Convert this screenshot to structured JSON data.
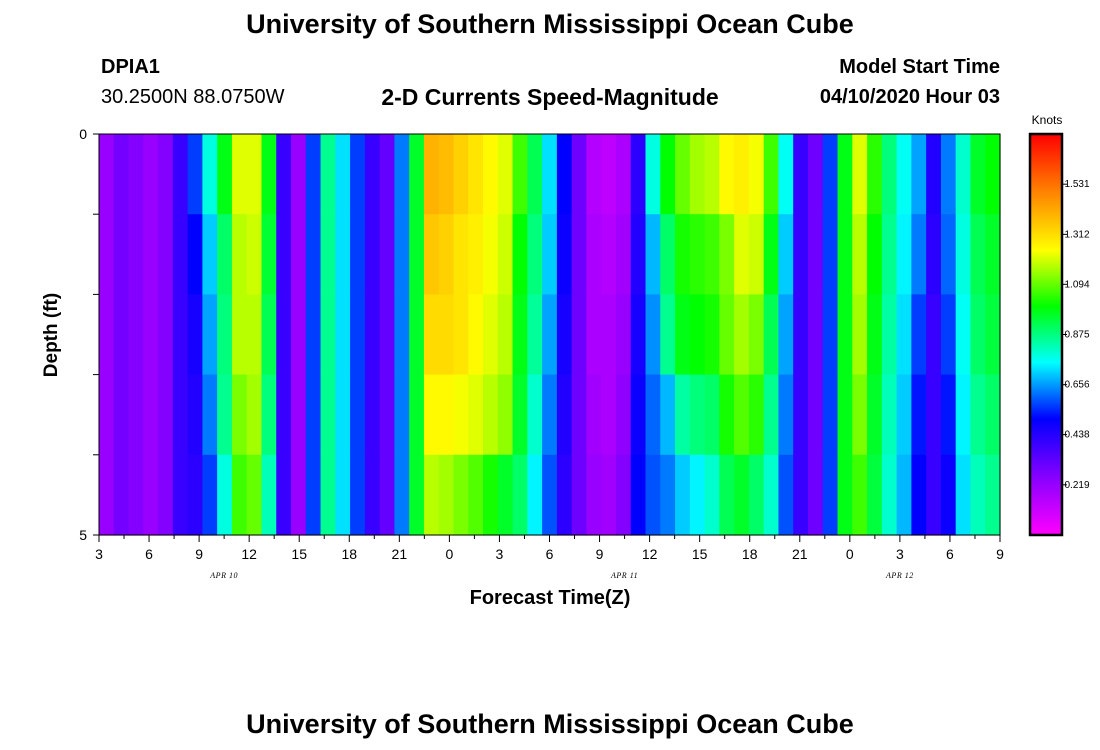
{
  "page": {
    "title_top": "University of Southern Mississippi Ocean Cube",
    "title_bottom": "University of Southern Mississippi Ocean Cube",
    "station_id": "DPIA1",
    "station_coords": "30.2500N 88.0750W",
    "chart_title": "2-D Currents Speed-Magnitude",
    "model_start_label": "Model Start Time",
    "model_start_value": "04/10/2020 Hour 03"
  },
  "colors": {
    "magenta": "#ff00ff",
    "purple": "#8a00ff",
    "blue": "#0000ff",
    "cyan": "#00ffff",
    "green": "#00ff00",
    "yellow": "#ffff00",
    "orange": "#ff7f00",
    "red": "#ff0000"
  },
  "chart_data": {
    "type": "heatmap",
    "title": "2-D Currents Speed-Magnitude",
    "xlabel": "Forecast Time(Z)",
    "ylabel": "Depth (ft)",
    "y_ticks": [
      "0",
      "5"
    ],
    "ylim": [
      0,
      5
    ],
    "x_ticks": [
      "3",
      "6",
      "9",
      "12",
      "15",
      "18",
      "21",
      "0",
      "3",
      "6",
      "9",
      "12",
      "15",
      "18",
      "21",
      "0",
      "3",
      "6",
      "9"
    ],
    "date_labels": [
      {
        "label": "APR 10",
        "tick_index": 2.5
      },
      {
        "label": "APR 11",
        "tick_index": 10.5
      },
      {
        "label": "APR 12",
        "tick_index": 16
      }
    ],
    "colorbar": {
      "unit": "Knots",
      "min": 0.0,
      "max": 1.75,
      "ticks": [
        "1.531",
        "1.312",
        "1.094",
        "0.875",
        "0.656",
        "0.438",
        "0.219"
      ]
    },
    "hours_per_column": 1,
    "rows": 5,
    "column_profiles": [
      [
        0.22,
        0.22,
        0.22,
        0.22,
        0.22
      ],
      [
        0.29,
        0.29,
        0.29,
        0.29,
        0.29
      ],
      [
        0.26,
        0.26,
        0.26,
        0.26,
        0.26
      ],
      [
        0.22,
        0.22,
        0.22,
        0.22,
        0.22
      ],
      [
        0.26,
        0.26,
        0.26,
        0.26,
        0.26
      ],
      [
        0.4,
        0.4,
        0.4,
        0.4,
        0.4
      ],
      [
        0.56,
        0.5,
        0.46,
        0.44,
        0.42
      ],
      [
        0.78,
        0.7,
        0.66,
        0.62,
        0.56
      ],
      [
        0.98,
        0.9,
        0.88,
        0.86,
        0.78
      ],
      [
        1.22,
        1.18,
        1.18,
        1.12,
        1.06
      ],
      [
        1.22,
        1.2,
        1.18,
        1.16,
        1.1
      ],
      [
        0.98,
        0.95,
        0.92,
        0.88,
        0.82
      ],
      [
        0.4,
        0.4,
        0.4,
        0.4,
        0.4
      ],
      [
        0.22,
        0.22,
        0.22,
        0.22,
        0.22
      ],
      [
        0.56,
        0.56,
        0.56,
        0.56,
        0.56
      ],
      [
        0.86,
        0.86,
        0.86,
        0.86,
        0.86
      ],
      [
        0.72,
        0.72,
        0.72,
        0.72,
        0.72
      ],
      [
        0.56,
        0.56,
        0.56,
        0.56,
        0.56
      ],
      [
        0.4,
        0.4,
        0.4,
        0.4,
        0.4
      ],
      [
        0.32,
        0.32,
        0.32,
        0.32,
        0.32
      ],
      [
        0.62,
        0.62,
        0.62,
        0.62,
        0.62
      ],
      [
        0.96,
        0.96,
        0.96,
        0.96,
        0.96
      ],
      [
        1.4,
        1.36,
        1.32,
        1.26,
        1.18
      ],
      [
        1.38,
        1.34,
        1.32,
        1.26,
        1.16
      ],
      [
        1.34,
        1.3,
        1.3,
        1.24,
        1.12
      ],
      [
        1.3,
        1.28,
        1.26,
        1.22,
        1.08
      ],
      [
        1.26,
        1.24,
        1.22,
        1.18,
        1.02
      ],
      [
        1.22,
        1.2,
        1.18,
        1.14,
        0.96
      ],
      [
        1.06,
        1.0,
        0.98,
        0.96,
        0.9
      ],
      [
        0.92,
        0.88,
        0.85,
        0.8,
        0.74
      ],
      [
        0.72,
        0.7,
        0.66,
        0.62,
        0.58
      ],
      [
        0.5,
        0.48,
        0.46,
        0.44,
        0.42
      ],
      [
        0.3,
        0.3,
        0.3,
        0.3,
        0.3
      ],
      [
        0.16,
        0.18,
        0.18,
        0.2,
        0.22
      ],
      [
        0.14,
        0.16,
        0.18,
        0.18,
        0.2
      ],
      [
        0.18,
        0.2,
        0.22,
        0.24,
        0.26
      ],
      [
        0.42,
        0.44,
        0.46,
        0.48,
        0.5
      ],
      [
        0.78,
        0.68,
        0.64,
        0.6,
        0.58
      ],
      [
        1.0,
        0.9,
        0.86,
        0.68,
        0.62
      ],
      [
        1.1,
        1.02,
        0.98,
        0.84,
        0.7
      ],
      [
        1.16,
        1.04,
        1.0,
        0.88,
        0.74
      ],
      [
        1.18,
        1.06,
        1.02,
        0.9,
        0.8
      ],
      [
        1.26,
        1.12,
        1.1,
        1.02,
        0.92
      ],
      [
        1.28,
        1.22,
        1.16,
        1.08,
        0.96
      ],
      [
        1.24,
        1.2,
        1.12,
        1.04,
        0.9
      ],
      [
        1.06,
        0.98,
        0.92,
        0.86,
        0.8
      ],
      [
        0.76,
        0.7,
        0.66,
        0.62,
        0.58
      ],
      [
        0.4,
        0.4,
        0.4,
        0.4,
        0.4
      ],
      [
        0.3,
        0.3,
        0.3,
        0.3,
        0.3
      ],
      [
        0.56,
        0.56,
        0.56,
        0.56,
        0.56
      ],
      [
        0.98,
        0.98,
        0.98,
        0.98,
        0.98
      ],
      [
        1.22,
        1.18,
        1.16,
        1.12,
        1.06
      ],
      [
        1.04,
        1.0,
        0.98,
        0.96,
        0.94
      ],
      [
        0.88,
        0.86,
        0.84,
        0.82,
        0.8
      ],
      [
        0.76,
        0.74,
        0.72,
        0.7,
        0.68
      ],
      [
        0.66,
        0.62,
        0.56,
        0.52,
        0.5
      ],
      [
        0.44,
        0.42,
        0.4,
        0.4,
        0.4
      ],
      [
        0.62,
        0.6,
        0.56,
        0.52,
        0.48
      ],
      [
        0.8,
        0.78,
        0.76,
        0.74,
        0.72
      ],
      [
        0.96,
        0.92,
        0.9,
        0.86,
        0.82
      ],
      [
        1.0,
        0.96,
        0.94,
        0.9,
        0.86
      ]
    ]
  }
}
